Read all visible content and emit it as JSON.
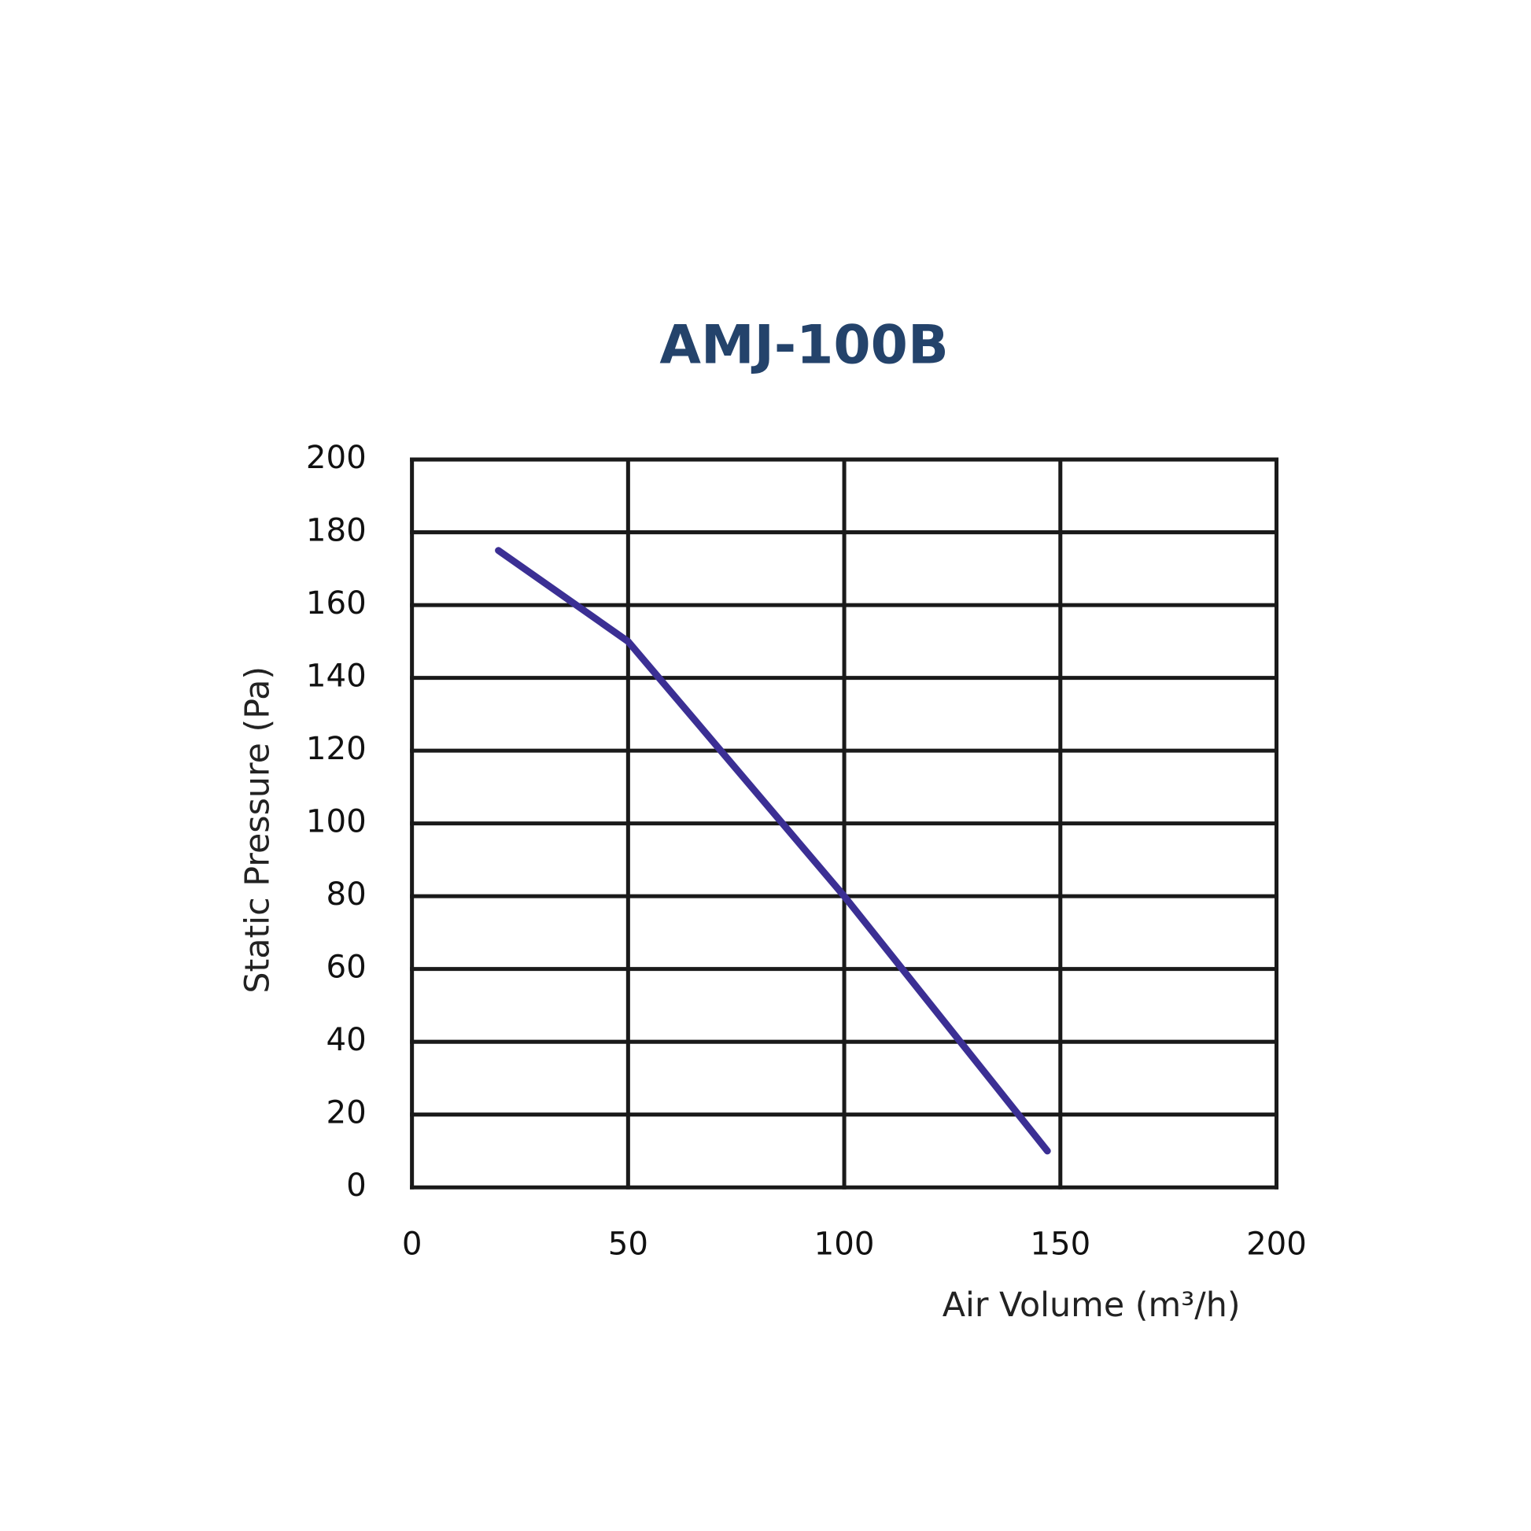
{
  "chart_data": {
    "type": "line",
    "title": "AMJ-100B",
    "x_label": "Air Volume (m³/h)",
    "y_label": "Static Pressure (Pa)",
    "x": [
      20,
      50,
      100,
      147
    ],
    "values": [
      175,
      150,
      80,
      10
    ],
    "color": "#3b2f94",
    "xlim": [
      0,
      200
    ],
    "xticks": [
      0,
      50,
      100,
      150,
      200
    ],
    "ylim": [
      0,
      200
    ],
    "yticks": [
      0,
      20,
      40,
      60,
      80,
      100,
      120,
      140,
      160,
      180,
      200
    ],
    "grid": true
  }
}
